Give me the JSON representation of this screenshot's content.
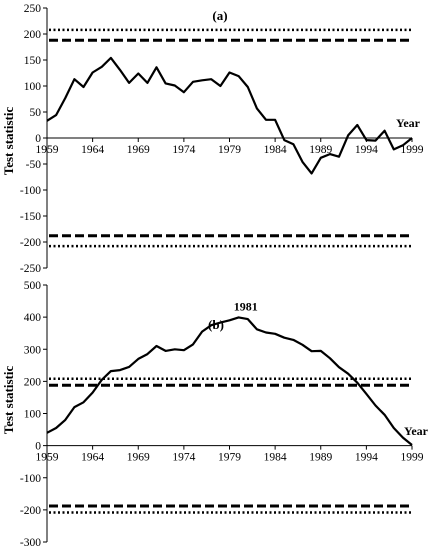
{
  "chart_data": [
    {
      "type": "line",
      "title": "(a)",
      "ylabel": "Test statistic",
      "xlabel": "Year",
      "ylim": [
        -250,
        250
      ],
      "xlim": [
        1959,
        1999
      ],
      "yticks": [
        "250",
        "200",
        "150",
        "100",
        "50",
        "0",
        "-50",
        "-100",
        "-150",
        "-200",
        "-250"
      ],
      "xticks": [
        "1959",
        "1964",
        "1969",
        "1974",
        "1979",
        "1984",
        "1989",
        "1994",
        "1999"
      ],
      "reference_lines": [
        {
          "style": "dotted",
          "value": 208
        },
        {
          "style": "dashed",
          "value": 188
        },
        {
          "style": "dashed",
          "value": -188
        },
        {
          "style": "dotted",
          "value": -208
        }
      ],
      "x": [
        1959,
        1960,
        1961,
        1962,
        1963,
        1964,
        1965,
        1966,
        1967,
        1968,
        1969,
        1970,
        1971,
        1972,
        1973,
        1974,
        1975,
        1976,
        1977,
        1978,
        1979,
        1980,
        1981,
        1982,
        1983,
        1984,
        1985,
        1986,
        1987,
        1988,
        1989,
        1990,
        1991,
        1992,
        1993,
        1994,
        1995,
        1996,
        1997,
        1998,
        1999
      ],
      "values": [
        33,
        44,
        77,
        113,
        98,
        126,
        137,
        154,
        131,
        106,
        124,
        106,
        136,
        105,
        101,
        88,
        108,
        111,
        113,
        100,
        126,
        119,
        98,
        57,
        35,
        35,
        -4,
        -12,
        -46,
        -68,
        -38,
        -31,
        -36,
        5,
        25,
        -4,
        -5,
        14,
        -22,
        -14,
        0
      ],
      "annotations": []
    },
    {
      "type": "line",
      "title": "(b)",
      "ylabel": "Test statistic",
      "xlabel": "Year",
      "ylim": [
        -300,
        500
      ],
      "xlim": [
        1959,
        1999
      ],
      "yticks": [
        "500",
        "400",
        "300",
        "200",
        "100",
        "0",
        "-100",
        "-200",
        "-300"
      ],
      "xticks": [
        "1959",
        "1964",
        "1969",
        "1974",
        "1979",
        "1984",
        "1989",
        "1994",
        "1999"
      ],
      "reference_lines": [
        {
          "style": "dotted",
          "value": 208
        },
        {
          "style": "dashed",
          "value": 188
        },
        {
          "style": "dashed",
          "value": -188
        },
        {
          "style": "dotted",
          "value": -208
        }
      ],
      "x": [
        1959,
        1960,
        1961,
        1962,
        1963,
        1964,
        1965,
        1966,
        1967,
        1968,
        1969,
        1970,
        1971,
        1972,
        1973,
        1974,
        1975,
        1976,
        1977,
        1978,
        1979,
        1980,
        1981,
        1982,
        1983,
        1984,
        1985,
        1986,
        1987,
        1988,
        1989,
        1990,
        1991,
        1992,
        1993,
        1994,
        1995,
        1996,
        1997,
        1998,
        1999
      ],
      "values": [
        40,
        55,
        80,
        120,
        135,
        165,
        205,
        232,
        235,
        245,
        270,
        285,
        310,
        295,
        300,
        297,
        315,
        355,
        375,
        383,
        390,
        399,
        394,
        362,
        352,
        348,
        336,
        329,
        314,
        294,
        295,
        272,
        244,
        224,
        196,
        161,
        125,
        96,
        55,
        25,
        2
      ],
      "annotations": [
        {
          "text": "1981",
          "x": 1981,
          "y": 399
        }
      ]
    }
  ]
}
